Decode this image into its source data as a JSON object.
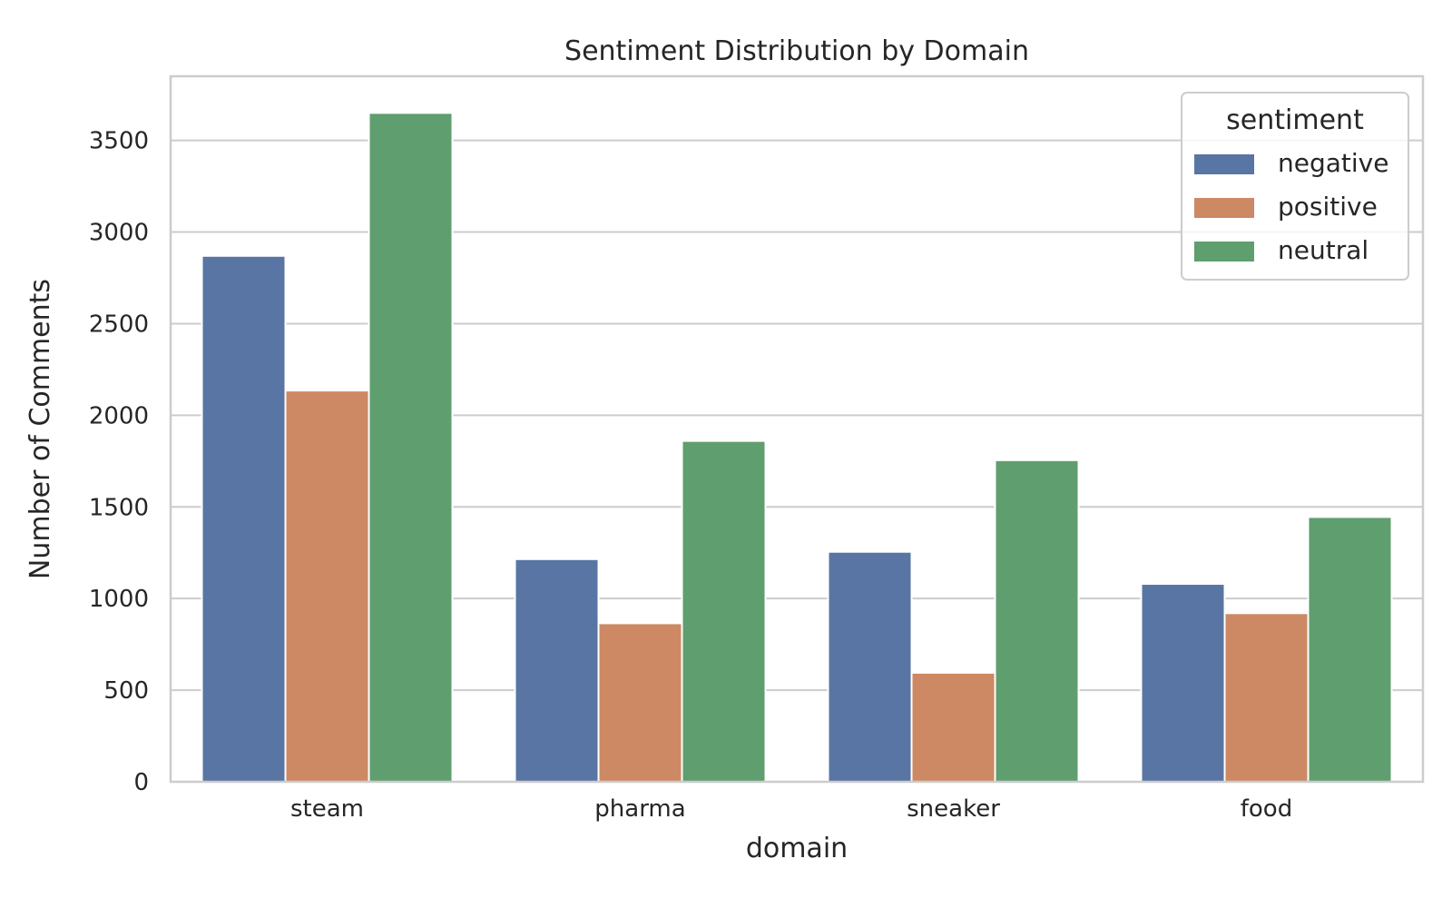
{
  "chart_data": {
    "type": "bar",
    "title": "Sentiment Distribution by Domain",
    "xlabel": "domain",
    "ylabel": "Number of Comments",
    "categories": [
      "steam",
      "pharma",
      "sneaker",
      "food"
    ],
    "series": [
      {
        "name": "negative",
        "color": "#5875a4",
        "values": [
          2870,
          1215,
          1255,
          1080
        ]
      },
      {
        "name": "positive",
        "color": "#cc8963",
        "values": [
          2135,
          865,
          595,
          920
        ]
      },
      {
        "name": "neutral",
        "color": "#5f9e6e",
        "values": [
          3650,
          1860,
          1755,
          1445
        ]
      }
    ],
    "ylim": [
      0,
      3850
    ],
    "yticks": [
      0,
      500,
      1000,
      1500,
      2000,
      2500,
      3000,
      3500
    ],
    "ytick_labels": [
      "0",
      "500",
      "1000",
      "1500",
      "2000",
      "2500",
      "3000",
      "3500"
    ],
    "grid": true,
    "legend": {
      "title": "sentiment",
      "position": "top-right"
    },
    "colors": {
      "grid": "#cccccc",
      "frame": "#cccccc",
      "background": "#ffffff"
    }
  }
}
